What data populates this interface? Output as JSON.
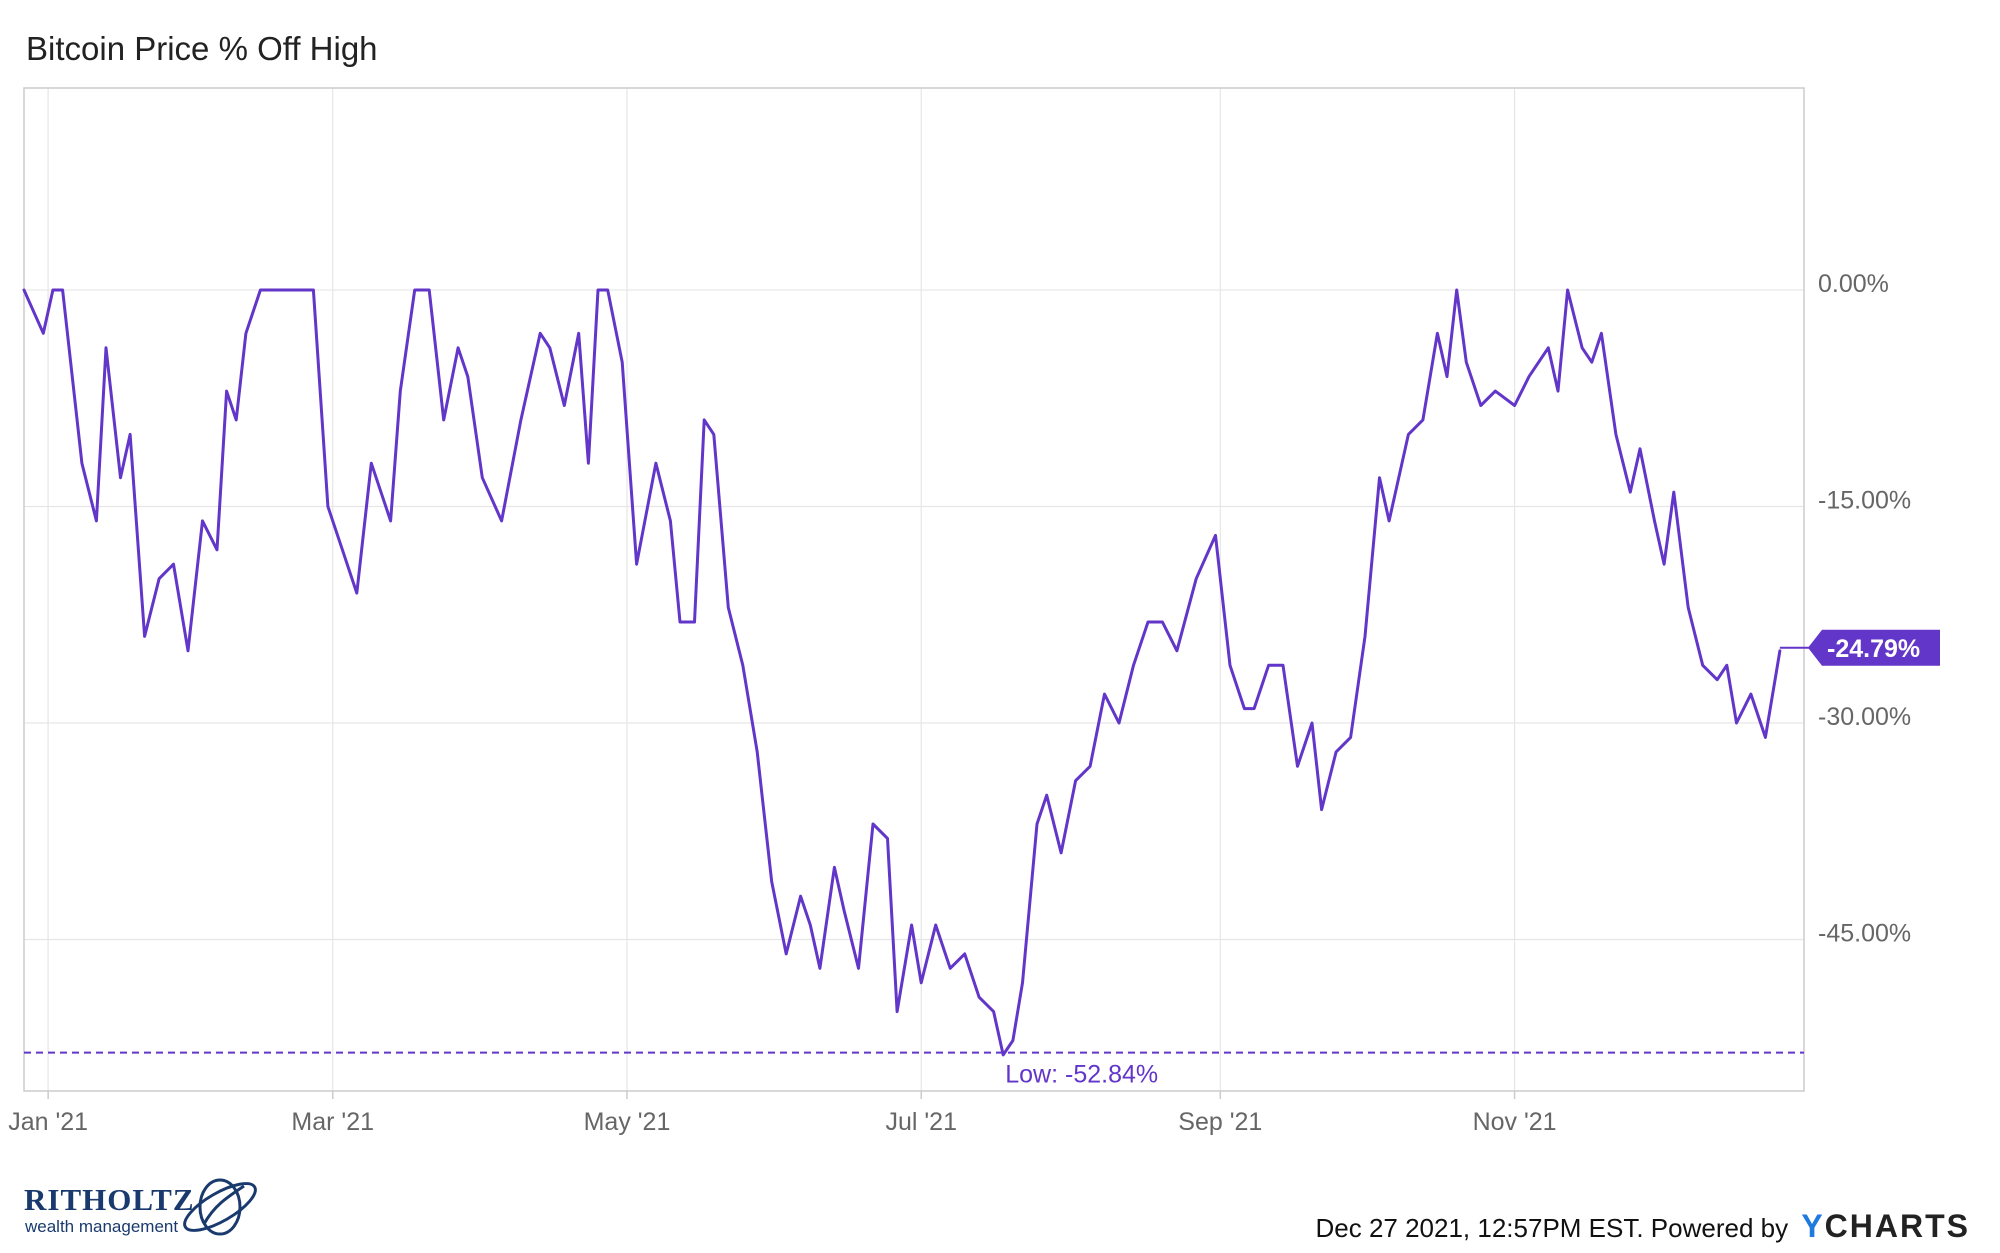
{
  "chart_data": {
    "type": "line",
    "title": "Bitcoin Price % Off High",
    "xlabel": "",
    "ylabel": "",
    "x_ticks": [
      "Jan '21",
      "Mar '21",
      "May '21",
      "Jul '21",
      "Sep '21",
      "Nov '21"
    ],
    "y_ticks": [
      "0.00%",
      "-15.00%",
      "-30.00%",
      "-45.00%"
    ],
    "ylim": [
      -55.5,
      14
    ],
    "grid": true,
    "series": [
      {
        "color": "#6236c9",
        "x": [
          "2020-12-27",
          "2020-12-31",
          "2021-01-02",
          "2021-01-04",
          "2021-01-08",
          "2021-01-11",
          "2021-01-13",
          "2021-01-16",
          "2021-01-18",
          "2021-01-21",
          "2021-01-24",
          "2021-01-27",
          "2021-01-30",
          "2021-02-02",
          "2021-02-05",
          "2021-02-07",
          "2021-02-09",
          "2021-02-11",
          "2021-02-14",
          "2021-02-17",
          "2021-02-20",
          "2021-02-22",
          "2021-02-25",
          "2021-02-28",
          "2021-03-03",
          "2021-03-06",
          "2021-03-09",
          "2021-03-13",
          "2021-03-15",
          "2021-03-18",
          "2021-03-21",
          "2021-03-24",
          "2021-03-27",
          "2021-03-29",
          "2021-04-01",
          "2021-04-05",
          "2021-04-09",
          "2021-04-13",
          "2021-04-15",
          "2021-04-18",
          "2021-04-21",
          "2021-04-23",
          "2021-04-25",
          "2021-04-27",
          "2021-04-30",
          "2021-05-03",
          "2021-05-07",
          "2021-05-10",
          "2021-05-12",
          "2021-05-15",
          "2021-05-17",
          "2021-05-19",
          "2021-05-22",
          "2021-05-25",
          "2021-05-28",
          "2021-05-31",
          "2021-06-03",
          "2021-06-06",
          "2021-06-08",
          "2021-06-10",
          "2021-06-13",
          "2021-06-15",
          "2021-06-18",
          "2021-06-21",
          "2021-06-24",
          "2021-06-26",
          "2021-06-29",
          "2021-07-01",
          "2021-07-04",
          "2021-07-07",
          "2021-07-10",
          "2021-07-13",
          "2021-07-16",
          "2021-07-18",
          "2021-07-20",
          "2021-07-22",
          "2021-07-25",
          "2021-07-27",
          "2021-07-30",
          "2021-08-02",
          "2021-08-05",
          "2021-08-08",
          "2021-08-11",
          "2021-08-14",
          "2021-08-17",
          "2021-08-20",
          "2021-08-23",
          "2021-08-27",
          "2021-08-31",
          "2021-09-03",
          "2021-09-06",
          "2021-09-08",
          "2021-09-11",
          "2021-09-14",
          "2021-09-17",
          "2021-09-20",
          "2021-09-22",
          "2021-09-25",
          "2021-09-28",
          "2021-10-01",
          "2021-10-04",
          "2021-10-06",
          "2021-10-10",
          "2021-10-13",
          "2021-10-16",
          "2021-10-18",
          "2021-10-20",
          "2021-10-22",
          "2021-10-25",
          "2021-10-28",
          "2021-11-01",
          "2021-11-04",
          "2021-11-08",
          "2021-11-10",
          "2021-11-12",
          "2021-11-15",
          "2021-11-17",
          "2021-11-19",
          "2021-11-22",
          "2021-11-25",
          "2021-11-27",
          "2021-11-30",
          "2021-12-02",
          "2021-12-04",
          "2021-12-07",
          "2021-12-10",
          "2021-12-13",
          "2021-12-15",
          "2021-12-17",
          "2021-12-20",
          "2021-12-23",
          "2021-12-26"
        ],
        "y": [
          0,
          -3,
          0,
          0,
          -12,
          -16,
          -4,
          -13,
          -10,
          -24,
          -20,
          -19,
          -25,
          -16,
          -18,
          -7,
          -9,
          -3,
          0,
          0,
          0,
          0,
          0,
          -15,
          -18,
          -21,
          -12,
          -16,
          -7,
          0,
          0,
          -9,
          -4,
          -6,
          -13,
          -16,
          -9,
          -3,
          -4,
          -8,
          -3,
          -12,
          0,
          0,
          -5,
          -19,
          -12,
          -16,
          -23,
          -23,
          -9,
          -10,
          -22,
          -26,
          -32,
          -41,
          -46,
          -42,
          -44,
          -47,
          -40,
          -43,
          -47,
          -37,
          -38,
          -50,
          -44,
          -48,
          -44,
          -47,
          -46,
          -49,
          -50,
          -53,
          -52,
          -48,
          -37,
          -35,
          -39,
          -34,
          -33,
          -28,
          -30,
          -26,
          -23,
          -23,
          -25,
          -20,
          -17,
          -26,
          -29,
          -29,
          -26,
          -26,
          -33,
          -30,
          -36,
          -32,
          -31,
          -24,
          -13,
          -16,
          -10,
          -9,
          -3,
          -6,
          0,
          -5,
          -8,
          -7,
          -8,
          -6,
          -4,
          -7,
          0,
          -4,
          -5,
          -3,
          -10,
          -14,
          -11,
          -16,
          -19,
          -14,
          -22,
          -26,
          -27,
          -26,
          -30,
          -28,
          -31,
          -25
        ]
      }
    ],
    "reference_line": {
      "value": -52.84,
      "label": "Low: -52.84%"
    },
    "last_value_label": "-24.79%"
  },
  "footer": {
    "logo_main": "RITHOLTZ",
    "logo_sub": "wealth management",
    "stamp": "Dec 27 2021, 12:57PM EST. Powered by",
    "brand_y": "Y",
    "brand_rest": "CHARTS"
  },
  "colors": {
    "line": "#6236c9",
    "grid": "#e6e6e6",
    "frame": "#cccccc",
    "logo": "#1a3a6e",
    "brand_y": "#1f7ae0"
  }
}
